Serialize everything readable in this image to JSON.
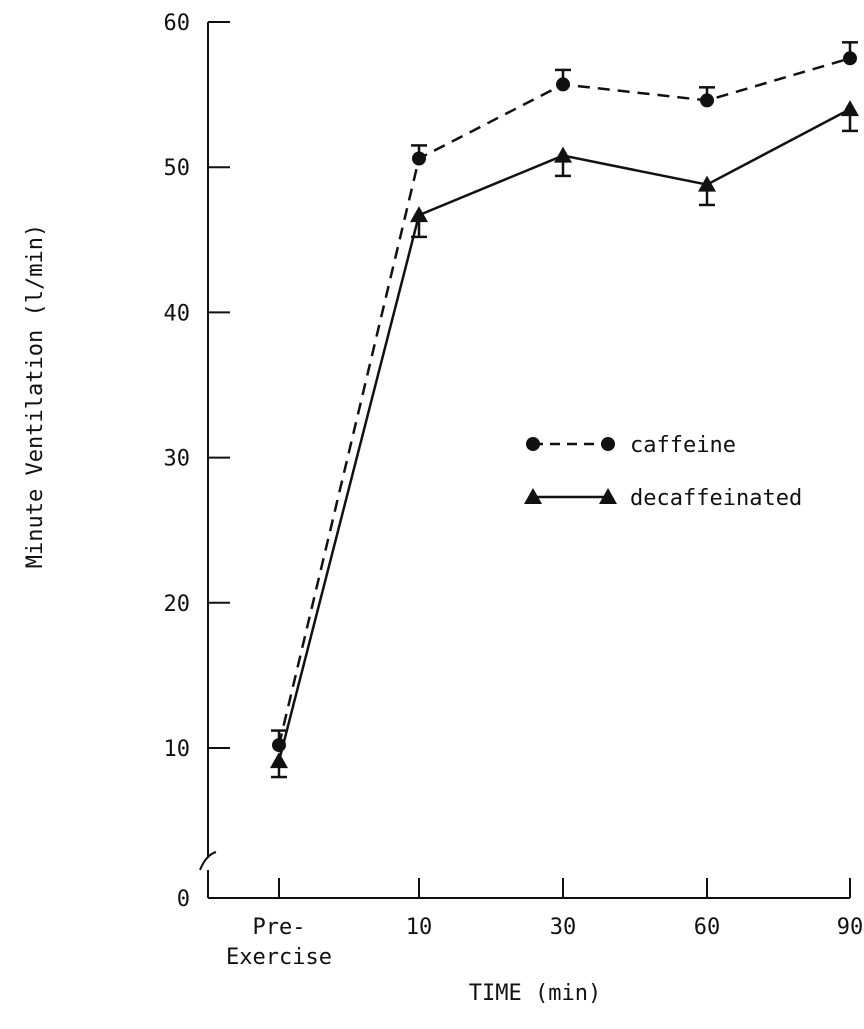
{
  "chart_data": {
    "type": "line",
    "title": "",
    "xlabel": "TIME (min)",
    "ylabel": "Minute Ventilation (l/min)",
    "categories": [
      "Pre-Exercise",
      "10",
      "30",
      "60",
      "90"
    ],
    "category_label_lines": [
      [
        "Pre-",
        "Exercise"
      ],
      [
        "10"
      ],
      [
        "30"
      ],
      [
        "60"
      ],
      [
        "90"
      ]
    ],
    "ylim": [
      0,
      60
    ],
    "yticks": [
      0,
      10,
      20,
      30,
      40,
      50,
      60
    ],
    "y_axis_break": true,
    "grid": false,
    "legend_position": "center-right",
    "series": [
      {
        "name": "caffeine",
        "line_style": "dashed",
        "marker": "circle",
        "color": "#111111",
        "values": [
          10.2,
          50.6,
          55.7,
          54.6,
          57.5
        ],
        "error_up": [
          1.0,
          0.9,
          1.0,
          0.9,
          1.1
        ],
        "error_down": [
          0,
          0,
          0,
          0,
          0
        ]
      },
      {
        "name": "decaffeinated",
        "line_style": "solid",
        "marker": "triangle",
        "color": "#111111",
        "values": [
          9.1,
          46.7,
          50.8,
          48.8,
          54.0
        ],
        "error_up": [
          0,
          0,
          0,
          0,
          0
        ],
        "error_down": [
          1.1,
          1.5,
          1.4,
          1.4,
          1.5
        ]
      }
    ]
  }
}
